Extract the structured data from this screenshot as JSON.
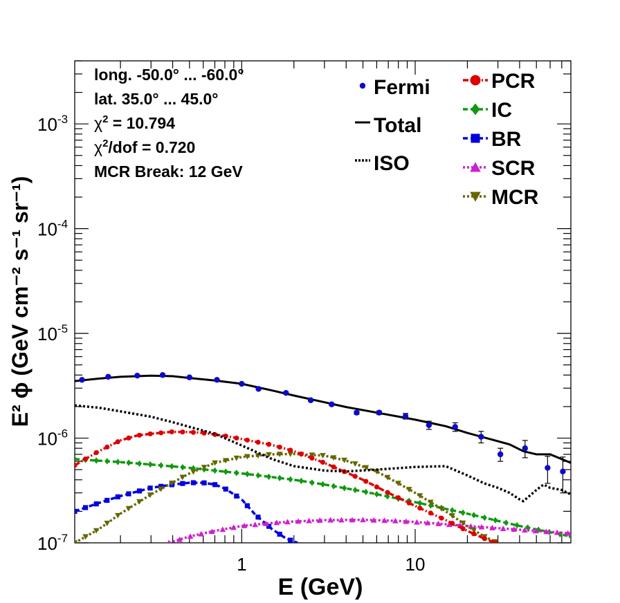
{
  "chart_data": {
    "type": "line",
    "xscale": "log",
    "yscale": "log",
    "xlim": [
      0.109,
      79
    ],
    "ylim": [
      1e-07,
      0.004
    ],
    "xlabel": "E (GeV)",
    "ylabel": "E² ϕ (GeV cm⁻² s⁻¹ sr⁻¹)",
    "x_tick_labels": [
      {
        "value": 1,
        "label": "1"
      },
      {
        "value": 10,
        "label": "10"
      }
    ],
    "y_tick_labels": [
      {
        "value": 1e-07,
        "base": "10",
        "exp": "-7"
      },
      {
        "value": 1e-06,
        "base": "10",
        "exp": "-6"
      },
      {
        "value": 1e-05,
        "base": "10",
        "exp": "-5"
      },
      {
        "value": 0.0001,
        "base": "10",
        "exp": "-4"
      },
      {
        "value": 0.001,
        "base": "10",
        "exp": "-3"
      }
    ],
    "info_lines": [
      "long. -50.0° ... -60.0°",
      "lat. 35.0° ... 45.0°",
      "χ² = 10.794",
      "χ²/dof = 0.720",
      "MCR Break: 12 GeV"
    ],
    "legend_left": [
      {
        "label": "Fermi",
        "marker": "dot",
        "color": "#0b0bcc"
      },
      {
        "label": "Total",
        "marker": "line",
        "color": "#000000"
      },
      {
        "label": "ISO",
        "marker": "dotted",
        "color": "#000000"
      }
    ],
    "legend_right": [
      {
        "label": "PCR",
        "marker": "circle",
        "color": "#dd0000"
      },
      {
        "label": "IC",
        "marker": "diamond",
        "color": "#119911"
      },
      {
        "label": "BR",
        "marker": "square",
        "color": "#0000dd"
      },
      {
        "label": "SCR",
        "marker": "triangle-up",
        "color": "#cc22cc"
      },
      {
        "label": "MCR",
        "marker": "triangle-down",
        "color": "#666600"
      }
    ],
    "fermi": {
      "x": [
        0.12,
        0.17,
        0.25,
        0.35,
        0.5,
        0.72,
        1.0,
        1.25,
        1.8,
        2.5,
        3.3,
        4.6,
        6.2,
        8.8,
        12.0,
        17.0,
        24.0,
        31.0,
        43.0,
        58.0,
        71.0
      ],
      "y": [
        3.6e-06,
        3.85e-06,
        3.95e-06,
        4e-06,
        3.8e-06,
        3.6e-06,
        3.3e-06,
        2.95e-06,
        2.7e-06,
        2.3e-06,
        2.1e-06,
        1.75e-06,
        1.75e-06,
        1.62e-06,
        1.33e-06,
        1.28e-06,
        1.03e-06,
        7e-07,
        8e-07,
        5.2e-07,
        4.8e-07
      ],
      "yerr": [
        5e-08,
        5e-08,
        5e-08,
        5e-08,
        5e-08,
        5e-08,
        5e-08,
        5e-08,
        5e-08,
        5e-08,
        5e-08,
        6e-08,
        7e-08,
        1e-07,
        1.2e-07,
        1.2e-07,
        1.3e-07,
        1e-07,
        1.5e-07,
        1.5e-07,
        1.8e-07
      ]
    },
    "series": [
      {
        "name": "Total",
        "color": "#000000",
        "style": "solid",
        "marker": "none",
        "x": [
          0.109,
          0.15,
          0.2,
          0.3,
          0.4,
          0.5,
          0.7,
          1.0,
          1.5,
          2.0,
          3.0,
          4.0,
          6.0,
          10.0,
          15.0,
          20.0,
          27.0,
          35.0,
          42.0,
          50.0,
          60.0,
          79.0
        ],
        "y": [
          3.5e-06,
          3.7e-06,
          3.85e-06,
          3.95e-06,
          3.9e-06,
          3.75e-06,
          3.55e-06,
          3.3e-06,
          2.85e-06,
          2.55e-06,
          2.2e-06,
          1.98e-06,
          1.75e-06,
          1.5e-06,
          1.3e-06,
          1.12e-06,
          9.8e-07,
          8.7e-07,
          7.5e-07,
          7e-07,
          7e-07,
          5.8e-07
        ]
      },
      {
        "name": "ISO",
        "color": "#000000",
        "style": "dotted",
        "marker": "none",
        "x": [
          0.109,
          0.15,
          0.2,
          0.3,
          0.4,
          0.5,
          0.7,
          1.0,
          1.5,
          2.0,
          3.0,
          4.0,
          6.0,
          10.0,
          15.0,
          20.0,
          25.0,
          30.0,
          35.0,
          40.0,
          42.0,
          45.0,
          50.0,
          55.0,
          60.0,
          70.0,
          79.0
        ],
        "y": [
          2.05e-06,
          1.95e-06,
          1.8e-06,
          1.6e-06,
          1.42e-06,
          1.28e-06,
          1.1e-06,
          8.5e-07,
          6.3e-07,
          5.4e-07,
          4.9e-07,
          4.8e-07,
          5e-07,
          5.3e-07,
          5.4e-07,
          4.4e-07,
          3.7e-07,
          3.35e-07,
          3e-07,
          2.6e-07,
          2.5e-07,
          2.75e-07,
          3.2e-07,
          3.6e-07,
          3.35e-07,
          3.2e-07,
          2.9e-07
        ]
      },
      {
        "name": "PCR",
        "color": "#dd0000",
        "style": "dashdot",
        "marker": "circle",
        "x": [
          0.109,
          0.15,
          0.2,
          0.25,
          0.3,
          0.4,
          0.5,
          0.6,
          0.8,
          1.0,
          1.5,
          2.0,
          3.0,
          5.0,
          7.0,
          10.0,
          15.0,
          20.0,
          25.0,
          30.0
        ],
        "y": [
          5.5e-07,
          7.5e-07,
          9.5e-07,
          1.06e-06,
          1.1e-06,
          1.15e-06,
          1.14e-06,
          1.12e-06,
          1.05e-06,
          9.8e-07,
          8.6e-07,
          7.5e-07,
          5.8e-07,
          4e-07,
          3e-07,
          2.25e-07,
          1.65e-07,
          1.3e-07,
          1.1e-07,
          9.8e-08
        ]
      },
      {
        "name": "IC",
        "color": "#119911",
        "style": "dashed",
        "marker": "diamond",
        "x": [
          0.109,
          0.2,
          0.3,
          0.5,
          1.0,
          2.0,
          3.0,
          5.0,
          10.0,
          20.0,
          40.0,
          79.0
        ],
        "y": [
          6.3e-07,
          5.9e-07,
          5.6e-07,
          5.2e-07,
          4.6e-07,
          4e-07,
          3.6e-07,
          3.1e-07,
          2.45e-07,
          1.9e-07,
          1.45e-07,
          1.15e-07
        ]
      },
      {
        "name": "BR",
        "color": "#0000dd",
        "style": "dashed",
        "marker": "square",
        "x": [
          0.109,
          0.15,
          0.2,
          0.3,
          0.4,
          0.5,
          0.6,
          0.7,
          0.8,
          1.0,
          1.2,
          1.5,
          1.8,
          2.1
        ],
        "y": [
          2e-07,
          2.4e-07,
          2.8e-07,
          3.35e-07,
          3.6e-07,
          3.75e-07,
          3.75e-07,
          3.6e-07,
          3.3e-07,
          2.6e-07,
          1.85e-07,
          1.35e-07,
          1.1e-07,
          1e-07
        ]
      },
      {
        "name": "SCR",
        "color": "#cc22cc",
        "style": "dotted",
        "marker": "triangle-up",
        "x": [
          0.38,
          0.5,
          0.7,
          1.0,
          1.5,
          2.0,
          3.0,
          5.0,
          8.0,
          12.0,
          20.0,
          30.0,
          50.0,
          79.0
        ],
        "y": [
          1e-07,
          1.15e-07,
          1.3e-07,
          1.45e-07,
          1.55e-07,
          1.6e-07,
          1.65e-07,
          1.66e-07,
          1.62e-07,
          1.55e-07,
          1.45e-07,
          1.38e-07,
          1.3e-07,
          1.23e-07
        ]
      },
      {
        "name": "MCR",
        "color": "#666600",
        "style": "dotted",
        "marker": "triangle-down",
        "x": [
          0.109,
          0.15,
          0.2,
          0.3,
          0.5,
          0.7,
          1.0,
          1.5,
          2.0,
          3.0,
          4.0,
          6.0,
          8.0,
          10.0,
          12.0,
          15.0,
          20.0,
          25.0,
          30.0
        ],
        "y": [
          1e-07,
          1.35e-07,
          1.9e-07,
          2.9e-07,
          4.6e-07,
          5.8e-07,
          6.6e-07,
          7e-07,
          7.05e-07,
          6.8e-07,
          6.1e-07,
          4.8e-07,
          3.7e-07,
          3e-07,
          2.5e-07,
          2e-07,
          1.45e-07,
          1.15e-07,
          1e-07
        ]
      }
    ]
  }
}
